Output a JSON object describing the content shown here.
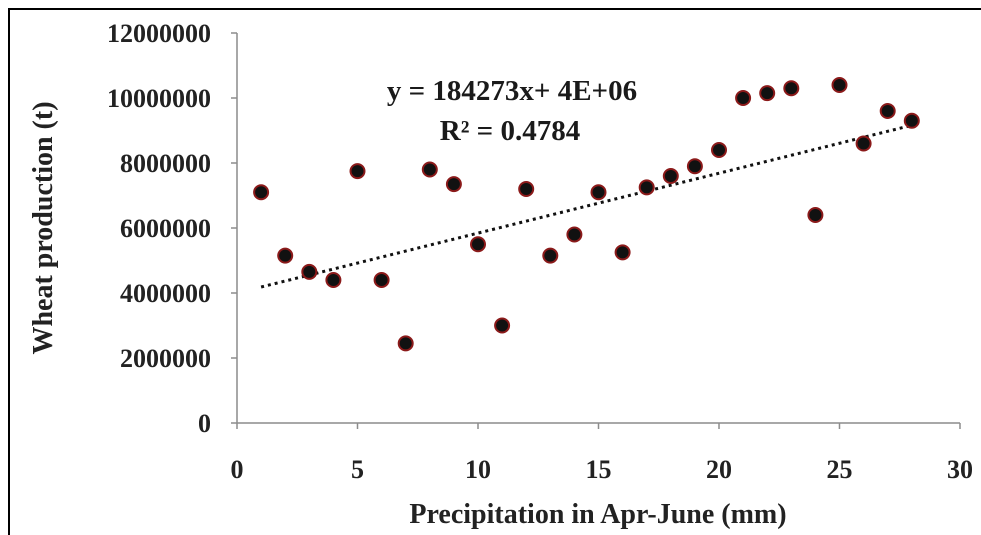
{
  "chart_data": {
    "type": "scatter",
    "xlabel": "Precipitation in Apr-June (mm)",
    "ylabel": "Wheat production (t)",
    "xlim": [
      0,
      30
    ],
    "ylim": [
      0,
      12000000
    ],
    "x_ticks": [
      0,
      5,
      10,
      15,
      20,
      25,
      30
    ],
    "x_tick_labels": [
      "0",
      "5",
      "10",
      "15",
      "20",
      "25",
      "30"
    ],
    "y_ticks": [
      0,
      2000000,
      4000000,
      6000000,
      8000000,
      10000000,
      12000000
    ],
    "y_tick_labels": [
      "0",
      "2000000",
      "4000000",
      "6000000",
      "8000000",
      "10000000",
      "12000000"
    ],
    "grid": false,
    "legend": "none",
    "marker_color": "#111111",
    "marker_edge_color": "#8b1a1a",
    "trendline": {
      "style": "dotted",
      "x_range": [
        1,
        28
      ],
      "slope": 184273,
      "intercept": 4000000,
      "color": "#111111"
    },
    "annotations": {
      "equation": "y = 184273x+ 4E+06",
      "r_squared": "R² = 0.4784"
    },
    "points": [
      {
        "x": 1,
        "y": 7100000
      },
      {
        "x": 2,
        "y": 5150000
      },
      {
        "x": 3,
        "y": 4650000
      },
      {
        "x": 4,
        "y": 4400000
      },
      {
        "x": 5,
        "y": 7750000
      },
      {
        "x": 6,
        "y": 4400000
      },
      {
        "x": 7,
        "y": 2450000
      },
      {
        "x": 8,
        "y": 7800000
      },
      {
        "x": 9,
        "y": 7350000
      },
      {
        "x": 10,
        "y": 5500000
      },
      {
        "x": 11,
        "y": 3000000
      },
      {
        "x": 12,
        "y": 7200000
      },
      {
        "x": 13,
        "y": 5150000
      },
      {
        "x": 14,
        "y": 5800000
      },
      {
        "x": 15,
        "y": 7100000
      },
      {
        "x": 16,
        "y": 5250000
      },
      {
        "x": 17,
        "y": 7250000
      },
      {
        "x": 18,
        "y": 7600000
      },
      {
        "x": 19,
        "y": 7900000
      },
      {
        "x": 20,
        "y": 8400000
      },
      {
        "x": 21,
        "y": 10000000
      },
      {
        "x": 22,
        "y": 10150000
      },
      {
        "x": 23,
        "y": 10300000
      },
      {
        "x": 24,
        "y": 6400000
      },
      {
        "x": 25,
        "y": 10400000
      },
      {
        "x": 26,
        "y": 8600000
      },
      {
        "x": 27,
        "y": 9600000
      },
      {
        "x": 28,
        "y": 9300000
      }
    ]
  }
}
